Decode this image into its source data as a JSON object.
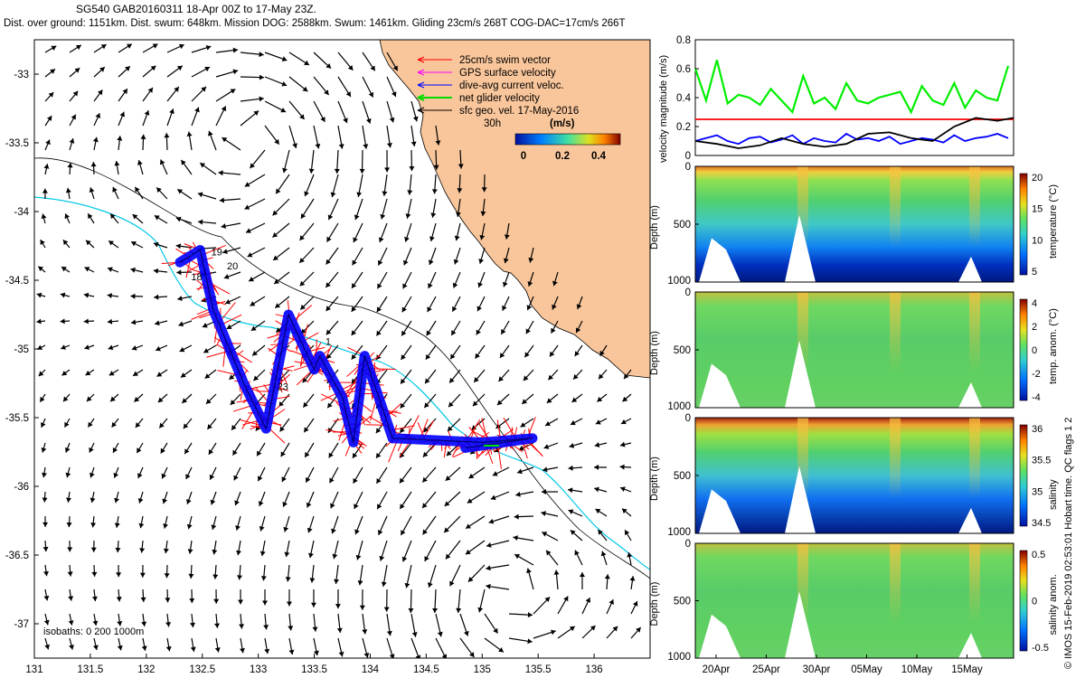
{
  "header": {
    "title": "SG540 GAB20160311 18-Apr 00Z to 17-May 23Z.",
    "summary": "Dist. over ground: 1151km. Dist. swum: 648km. Mission DOG: 2588km. Swum: 1461km. Gliding 23cm/s 268T COG-DAC=17cm/s 266T"
  },
  "side_stamp": "© IMOS 15-Feb-2019 02:53:01 Hobart time. QC flags 1 2",
  "colors": {
    "land": "#f9c69b",
    "swim_vector": "#ff0000",
    "gps_velocity": "#ff00ff",
    "current": "#0000ff",
    "net_velocity": "#00dd00",
    "geo_velocity": "#000000",
    "bathy": "#00c8e6"
  },
  "chart_data": [
    {
      "type": "scatter",
      "name": "map",
      "xlim": [
        131,
        136.5
      ],
      "ylim": [
        -37.25,
        -32.75
      ],
      "x_ticks": [
        "131",
        "131.5",
        "132",
        "132.5",
        "133",
        "133.5",
        "134",
        "134.5",
        "135",
        "135.5",
        "136"
      ],
      "y_ticks": [
        "-33",
        "-33.5",
        "-34",
        "-34.5",
        "-35",
        "-35.5",
        "-36",
        "-36.5",
        "-37"
      ],
      "legend": {
        "entries": [
          "25cm/s swim vector",
          "GPS surface velocity",
          "dive-avg current veloc.",
          "net glider velocity",
          "sfc geo. vel. 17-May-2016"
        ],
        "duration": "30h",
        "colorbar_title": "(m/s)",
        "colorbar_ticks": [
          "0",
          "0.2",
          "0.4"
        ]
      },
      "isobaths_label": "isobaths: 0 200 1000m",
      "track": [
        [
          132.3,
          -34.37
        ],
        [
          132.48,
          -34.28
        ],
        [
          132.6,
          -34.72
        ],
        [
          132.87,
          -35.25
        ],
        [
          133.07,
          -35.58
        ],
        [
          133.27,
          -34.75
        ],
        [
          133.5,
          -35.15
        ],
        [
          133.55,
          -35.05
        ],
        [
          133.75,
          -35.35
        ],
        [
          133.85,
          -35.68
        ],
        [
          133.95,
          -35.05
        ],
        [
          134.2,
          -35.65
        ],
        [
          135.0,
          -35.68
        ],
        [
          135.45,
          -35.65
        ],
        [
          134.85,
          -35.72
        ]
      ],
      "date_labels": [
        {
          "t": "18",
          "x": 132.4,
          "y": -34.5
        },
        {
          "t": "19",
          "x": 132.58,
          "y": -34.32
        },
        {
          "t": "20",
          "x": 132.72,
          "y": -34.42
        },
        {
          "t": "23",
          "x": 133.17,
          "y": -35.3
        },
        {
          "t": "1",
          "x": 133.6,
          "y": -34.97
        }
      ]
    },
    {
      "type": "line",
      "name": "velocity",
      "ylabel": "velocity magnitude (m/s)",
      "ylim": [
        0,
        0.8
      ],
      "y_ticks": [
        "0",
        "0.2",
        "0.4",
        "0.6",
        "0.8"
      ],
      "series": [
        {
          "color": "#00ee00",
          "x": [
            0,
            1,
            2,
            3,
            4,
            5,
            6,
            7,
            8,
            9,
            10,
            11,
            12,
            13,
            14,
            15,
            16,
            17,
            18,
            19,
            20,
            21,
            22,
            23,
            24,
            25,
            26,
            27,
            28,
            29
          ],
          "values": [
            0.6,
            0.38,
            0.66,
            0.36,
            0.42,
            0.4,
            0.35,
            0.46,
            0.38,
            0.3,
            0.55,
            0.36,
            0.4,
            0.32,
            0.5,
            0.38,
            0.36,
            0.4,
            0.42,
            0.44,
            0.3,
            0.48,
            0.38,
            0.35,
            0.5,
            0.33,
            0.45,
            0.4,
            0.38,
            0.62
          ]
        },
        {
          "color": "#ff0000",
          "x": [
            0,
            29.5
          ],
          "values": [
            0.25,
            0.25
          ]
        },
        {
          "color": "#0000ff",
          "x": [
            0,
            1,
            2,
            3,
            4,
            5,
            6,
            7,
            8,
            9,
            10,
            11,
            12,
            13,
            14,
            15,
            16,
            17,
            18,
            19,
            20,
            21,
            22,
            23,
            24,
            25,
            26,
            27,
            28,
            29
          ],
          "values": [
            0.1,
            0.12,
            0.14,
            0.1,
            0.08,
            0.12,
            0.13,
            0.09,
            0.11,
            0.14,
            0.08,
            0.12,
            0.1,
            0.09,
            0.15,
            0.11,
            0.12,
            0.1,
            0.13,
            0.08,
            0.1,
            0.12,
            0.11,
            0.09,
            0.14,
            0.1,
            0.12,
            0.13,
            0.15,
            0.12
          ]
        },
        {
          "color": "#000000",
          "x": [
            0,
            2,
            4,
            6,
            8,
            10,
            12,
            14,
            16,
            18,
            20,
            22,
            24,
            26,
            28,
            29.5
          ],
          "values": [
            0.1,
            0.08,
            0.05,
            0.07,
            0.12,
            0.08,
            0.06,
            0.08,
            0.15,
            0.16,
            0.12,
            0.1,
            0.2,
            0.26,
            0.24,
            0.26
          ]
        }
      ]
    },
    {
      "type": "heatmap",
      "name": "temperature",
      "ylabel": "Depth (m)",
      "colorbar_label": "temperature (°C)",
      "colorbar_ticks": [
        "5",
        "10",
        "15",
        "20"
      ],
      "y_ticks": [
        "0",
        "500",
        "1000"
      ]
    },
    {
      "type": "heatmap",
      "name": "temp_anomaly",
      "ylabel": "Depth (m)",
      "colorbar_label": "temp. anom. (°C)",
      "colorbar_ticks": [
        "-4",
        "-2",
        "0",
        "2",
        "4"
      ],
      "y_ticks": [
        "0",
        "500",
        "1000"
      ]
    },
    {
      "type": "heatmap",
      "name": "salinity",
      "ylabel": "Depth (m)",
      "colorbar_label": "salinity",
      "colorbar_ticks": [
        "34.5",
        "35",
        "35.5",
        "36"
      ],
      "y_ticks": [
        "0",
        "500",
        "1000"
      ]
    },
    {
      "type": "heatmap",
      "name": "salinity_anomaly",
      "ylabel": "Depth (m)",
      "colorbar_label": "salinity anom.",
      "colorbar_ticks": [
        "-0.5",
        "0",
        "0.5"
      ],
      "y_ticks": [
        "0",
        "500",
        "1000"
      ],
      "x_ticks": [
        "20Apr",
        "25Apr",
        "30Apr",
        "05May",
        "10May",
        "15May"
      ]
    }
  ]
}
